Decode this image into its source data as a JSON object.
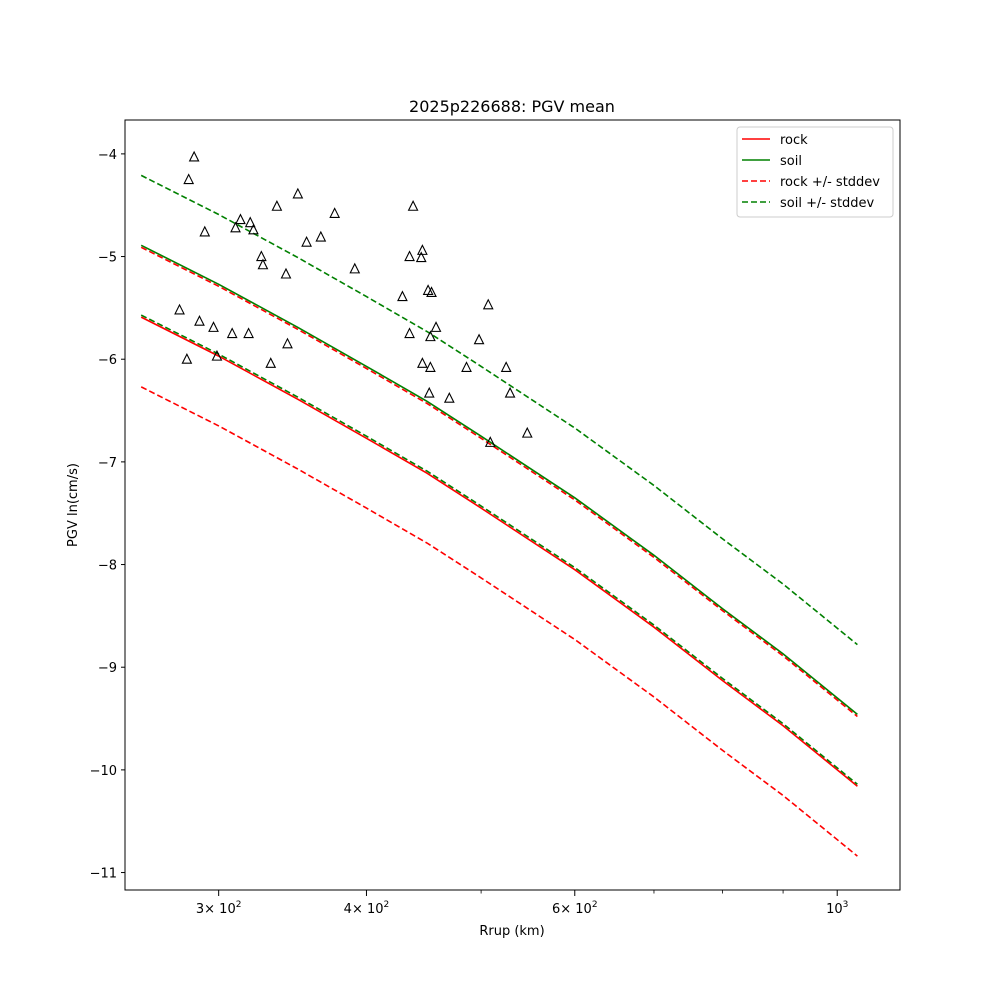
{
  "chart_data": {
    "type": "line",
    "title": "2025p226688: PGV mean",
    "xlabel": "Rrup (km)",
    "ylabel": "PGV ln(cm/s)",
    "xscale": "log",
    "xlim": [
      250,
      1130
    ],
    "ylim": [
      -11.17,
      -3.67
    ],
    "x_ticks": [
      {
        "value": 300,
        "base": "3",
        "mult": "× 10",
        "exp": "2"
      },
      {
        "value": 400,
        "base": "4",
        "mult": "× 10",
        "exp": "2"
      },
      {
        "value": 600,
        "base": "6",
        "mult": "× 10",
        "exp": "2"
      },
      {
        "value": 1000,
        "base": "10",
        "mult": "",
        "exp": "3"
      }
    ],
    "x_minor_ticks": [
      500,
      700,
      800,
      900
    ],
    "y_ticks": [
      {
        "value": -4,
        "label": "−4"
      },
      {
        "value": -5,
        "label": "−5"
      },
      {
        "value": -6,
        "label": "−6"
      },
      {
        "value": -7,
        "label": "−7"
      },
      {
        "value": -8,
        "label": "−8"
      },
      {
        "value": -9,
        "label": "−9"
      },
      {
        "value": -10,
        "label": "−10"
      },
      {
        "value": -11,
        "label": "−11"
      }
    ],
    "legend_position": "top-right",
    "grid": false,
    "series": [
      {
        "name": "rock",
        "color": "#ff0000",
        "style": "solid",
        "x": [
          258,
          300,
          350,
          400,
          450,
          500,
          600,
          700,
          800,
          900,
          1040
        ],
        "y": [
          -5.59,
          -5.97,
          -6.39,
          -6.77,
          -7.11,
          -7.45,
          -8.05,
          -8.61,
          -9.13,
          -9.57,
          -10.16
        ]
      },
      {
        "name": "soil",
        "color": "#008000",
        "style": "solid",
        "x": [
          258,
          300,
          350,
          400,
          450,
          500,
          600,
          700,
          800,
          900,
          1040
        ],
        "y": [
          -4.89,
          -5.27,
          -5.69,
          -6.07,
          -6.41,
          -6.75,
          -7.35,
          -7.91,
          -8.43,
          -8.87,
          -9.46
        ]
      },
      {
        "name": "rock +/- stddev",
        "color": "#ff0000",
        "style": "dashed",
        "x": [
          258,
          300,
          350,
          400,
          450,
          500,
          600,
          700,
          800,
          900,
          1040
        ],
        "y": [
          -4.91,
          -5.29,
          -5.71,
          -6.09,
          -6.43,
          -6.77,
          -7.37,
          -7.93,
          -8.45,
          -8.89,
          -9.48
        ]
      },
      {
        "name": "",
        "color": "#ff0000",
        "style": "dashed",
        "x": [
          258,
          300,
          350,
          400,
          450,
          500,
          600,
          700,
          800,
          900,
          1040
        ],
        "y": [
          -6.27,
          -6.65,
          -7.07,
          -7.45,
          -7.79,
          -8.13,
          -8.73,
          -9.29,
          -9.81,
          -10.25,
          -10.84
        ]
      },
      {
        "name": "soil +/- stddev",
        "color": "#008000",
        "style": "dashed",
        "x": [
          258,
          300,
          350,
          400,
          450,
          500,
          600,
          700,
          800,
          900,
          1040
        ],
        "y": [
          -4.21,
          -4.59,
          -5.01,
          -5.39,
          -5.73,
          -6.07,
          -6.67,
          -7.23,
          -7.75,
          -8.19,
          -8.78
        ]
      },
      {
        "name": "",
        "color": "#008000",
        "style": "dashed",
        "x": [
          258,
          300,
          350,
          400,
          450,
          500,
          600,
          700,
          800,
          900,
          1040
        ],
        "y": [
          -5.57,
          -5.95,
          -6.37,
          -6.75,
          -7.09,
          -7.43,
          -8.03,
          -8.59,
          -9.11,
          -9.55,
          -10.14
        ]
      }
    ],
    "observations": {
      "marker": "triangle-open",
      "color": "#000000",
      "points": [
        {
          "x": 286,
          "y": -4.03
        },
        {
          "x": 283,
          "y": -4.25
        },
        {
          "x": 292,
          "y": -4.76
        },
        {
          "x": 278,
          "y": -5.52
        },
        {
          "x": 282,
          "y": -6.0
        },
        {
          "x": 289,
          "y": -5.63
        },
        {
          "x": 297,
          "y": -5.69
        },
        {
          "x": 299,
          "y": -5.97
        },
        {
          "x": 308,
          "y": -5.75
        },
        {
          "x": 310,
          "y": -4.72
        },
        {
          "x": 313,
          "y": -4.64
        },
        {
          "x": 319,
          "y": -4.67
        },
        {
          "x": 321,
          "y": -4.74
        },
        {
          "x": 318,
          "y": -5.75
        },
        {
          "x": 326,
          "y": -5.0
        },
        {
          "x": 327,
          "y": -5.08
        },
        {
          "x": 332,
          "y": -6.04
        },
        {
          "x": 336,
          "y": -4.51
        },
        {
          "x": 342,
          "y": -5.17
        },
        {
          "x": 343,
          "y": -5.85
        },
        {
          "x": 350,
          "y": -4.39
        },
        {
          "x": 356,
          "y": -4.86
        },
        {
          "x": 366,
          "y": -4.81
        },
        {
          "x": 376,
          "y": -4.58
        },
        {
          "x": 391,
          "y": -5.12
        },
        {
          "x": 429,
          "y": -5.39
        },
        {
          "x": 435,
          "y": -5.0
        },
        {
          "x": 438,
          "y": -4.51
        },
        {
          "x": 435,
          "y": -5.75
        },
        {
          "x": 446,
          "y": -4.94
        },
        {
          "x": 445,
          "y": -5.01
        },
        {
          "x": 446,
          "y": -6.04
        },
        {
          "x": 451,
          "y": -5.33
        },
        {
          "x": 454,
          "y": -5.35
        },
        {
          "x": 453,
          "y": -5.78
        },
        {
          "x": 453,
          "y": -6.08
        },
        {
          "x": 452,
          "y": -6.33
        },
        {
          "x": 458,
          "y": -5.69
        },
        {
          "x": 470,
          "y": -6.38
        },
        {
          "x": 486,
          "y": -6.08
        },
        {
          "x": 498,
          "y": -5.81
        },
        {
          "x": 507,
          "y": -5.47
        },
        {
          "x": 509,
          "y": -6.81
        },
        {
          "x": 525,
          "y": -6.08
        },
        {
          "x": 529,
          "y": -6.33
        },
        {
          "x": 547,
          "y": -6.72
        }
      ]
    }
  }
}
